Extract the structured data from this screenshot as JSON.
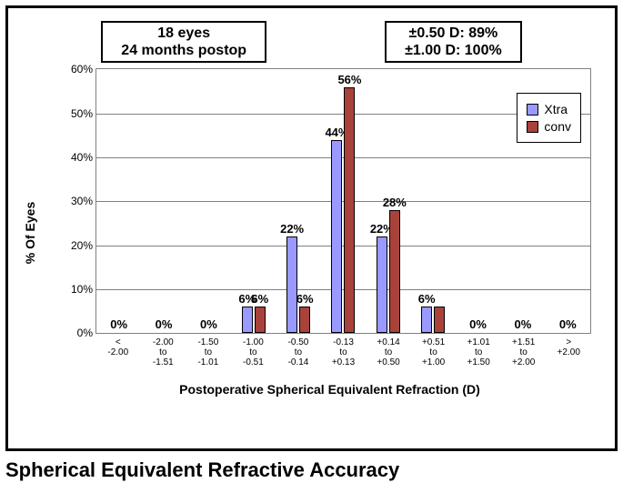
{
  "header": {
    "study_box": {
      "line1": "18 eyes",
      "line2": "24 months postop"
    },
    "accuracy_box": {
      "line1": "±0.50 D: 89%",
      "line2": "±1.00 D: 100%"
    }
  },
  "chart": {
    "type": "bar",
    "ylabel": "% Of Eyes",
    "xlabel": "Postoperative Spherical Equivalent Refraction (D)",
    "ylim": [
      0,
      60
    ],
    "ytick_step": 10,
    "ytick_suffix": "%",
    "grid_color": "#808080",
    "background_color": "#ffffff",
    "series": [
      {
        "name": "Xtra",
        "color": "#9999ff"
      },
      {
        "name": "conv",
        "color": "#a9423a"
      }
    ],
    "categories": [
      {
        "label": "<\n-2.00",
        "xtra": 0,
        "conv": null,
        "xtra_label": "0%",
        "conv_label": ""
      },
      {
        "label": "-2.00\nto\n-1.51",
        "xtra": 0,
        "conv": null,
        "xtra_label": "0%",
        "conv_label": ""
      },
      {
        "label": "-1.50\nto\n-1.01",
        "xtra": 0,
        "conv": null,
        "xtra_label": "0%",
        "conv_label": ""
      },
      {
        "label": "-1.00\nto\n-0.51",
        "xtra": 6,
        "conv": 6,
        "xtra_label": "6%",
        "conv_label": "6%"
      },
      {
        "label": "-0.50\nto\n-0.14",
        "xtra": 22,
        "conv": 6,
        "xtra_label": "22%",
        "conv_label": "6%"
      },
      {
        "label": "-0.13\nto\n+0.13",
        "xtra": 44,
        "conv": 56,
        "xtra_label": "44%",
        "conv_label": "56%"
      },
      {
        "label": "+0.14\nto\n+0.50",
        "xtra": 22,
        "conv": 28,
        "xtra_label": "22%",
        "conv_label": "28%"
      },
      {
        "label": "+0.51\nto\n+1.00",
        "xtra": 6,
        "conv": 6,
        "xtra_label": "6%",
        "conv_label": ""
      },
      {
        "label": "+1.01\nto\n+1.50",
        "xtra": 0,
        "conv": null,
        "xtra_label": "0%",
        "conv_label": ""
      },
      {
        "label": "+1.51\nto\n+2.00",
        "xtra": 0,
        "conv": null,
        "xtra_label": "0%",
        "conv_label": ""
      },
      {
        "label": ">\n+2.00",
        "xtra": 0,
        "conv": null,
        "xtra_label": "0%",
        "conv_label": ""
      }
    ]
  },
  "caption": "Spherical Equivalent Refractive Accuracy"
}
